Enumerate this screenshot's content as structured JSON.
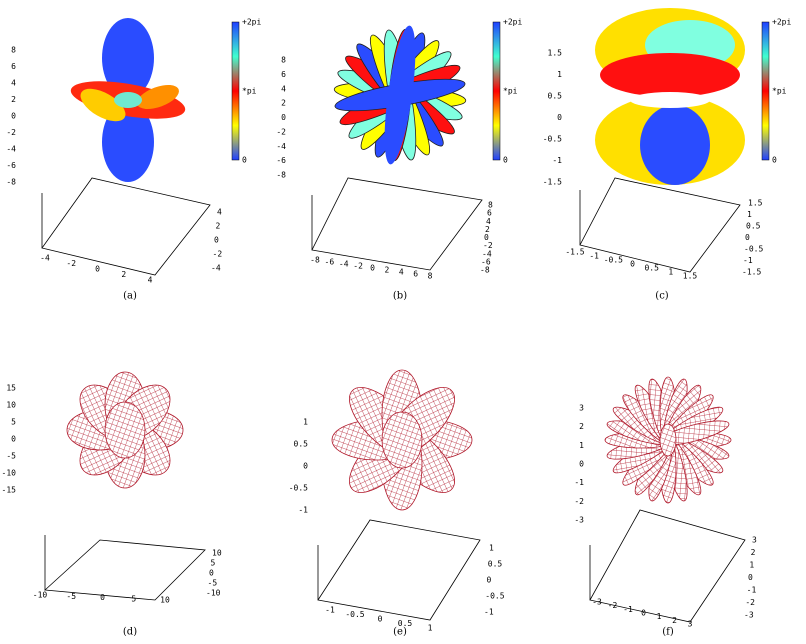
{
  "panels": [
    {
      "caption": "(a)",
      "colorbar": [
        "+2pi",
        "*pi",
        "0"
      ],
      "zticks": [
        "8",
        "6",
        "4",
        "2",
        "0",
        "-2",
        "-4",
        "-6",
        "-8"
      ],
      "xticks": [
        "-4",
        "-2",
        "0",
        "2",
        "4"
      ],
      "yticks": [
        "4",
        "2",
        "0",
        "-2",
        "-4"
      ]
    },
    {
      "caption": "(b)",
      "colorbar": [
        "+2pi",
        "*pi",
        "0"
      ],
      "zticks": [
        "8",
        "6",
        "4",
        "2",
        "0",
        "-2",
        "-4",
        "-6",
        "-8"
      ],
      "xticks": [
        "-8",
        "-6",
        "-4",
        "-2",
        "0",
        "2",
        "4",
        "6",
        "8"
      ],
      "yticks": [
        "8",
        "6",
        "4",
        "2",
        "0",
        "-2",
        "-4",
        "-6",
        "-8"
      ]
    },
    {
      "caption": "(c)",
      "colorbar": [
        "+2pi",
        "*pi",
        "0"
      ],
      "zticks": [
        "1.5",
        "1",
        "0.5",
        "0",
        "-0.5",
        "-1",
        "-1.5"
      ],
      "xticks": [
        "-1.5",
        "-1",
        "-0.5",
        "0",
        "0.5",
        "1",
        "1.5"
      ],
      "yticks": [
        "1.5",
        "1",
        "0.5",
        "0",
        "-0.5",
        "-1",
        "-1.5"
      ]
    },
    {
      "caption": "(d)",
      "zticks": [
        "15",
        "10",
        "5",
        "0",
        "-5",
        "-10",
        "-15"
      ],
      "xticks": [
        "-10",
        "-5",
        "0",
        "5",
        "10"
      ],
      "yticks": [
        "10",
        "5",
        "0",
        "-5",
        "-10"
      ]
    },
    {
      "caption": "(e)",
      "zticks": [
        "1",
        "0.5",
        "0",
        "-0.5",
        "-1"
      ],
      "xticks": [
        "-1",
        "-0.5",
        "0",
        "0.5",
        "1"
      ],
      "yticks": [
        "1",
        "0.5",
        "0",
        "-0.5",
        "-1"
      ]
    },
    {
      "caption": "(f)",
      "zticks": [
        "3",
        "2",
        "1",
        "0",
        "-1",
        "-2",
        "-3"
      ],
      "xticks": [
        "-3",
        "-2",
        "-1",
        "0",
        "1",
        "2",
        "3"
      ],
      "yticks": [
        "3",
        "2",
        "1",
        "0",
        "-1",
        "-2",
        "-3"
      ]
    }
  ]
}
